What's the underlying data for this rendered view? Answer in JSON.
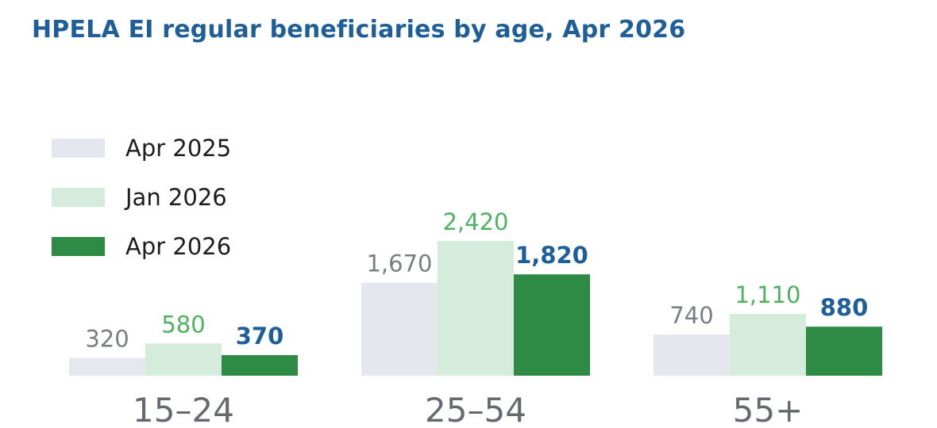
{
  "title": "HPELA EI regular beneficiaries by age, Apr 2026",
  "colors": {
    "title": "#1f5f99",
    "apr2025_bar": "#e4e8ee",
    "jan2026_bar": "#d5ecdc",
    "apr2026_bar": "#2e8b45",
    "apr2025_label": "#7a7e84",
    "jan2026_label": "#4cb35e",
    "apr2026_label": "#1f5f99",
    "category_label": "#666a70"
  },
  "chart_data": {
    "type": "bar",
    "title": "HPELA EI regular beneficiaries by age, Apr 2026",
    "categories": [
      "15–24",
      "25–54",
      "55+"
    ],
    "series": [
      {
        "name": "Apr 2025",
        "values": [
          320,
          1670,
          740
        ],
        "labels": [
          "320",
          "1,670",
          "740"
        ]
      },
      {
        "name": "Jan 2026",
        "values": [
          580,
          2420,
          1110
        ],
        "labels": [
          "580",
          "2,420",
          "1,110"
        ]
      },
      {
        "name": "Apr 2026",
        "values": [
          370,
          1820,
          880
        ],
        "labels": [
          "370",
          "1,820",
          "880"
        ]
      }
    ],
    "legend_position": "top-left",
    "grid": false,
    "ylim": [
      0,
      2420
    ]
  }
}
